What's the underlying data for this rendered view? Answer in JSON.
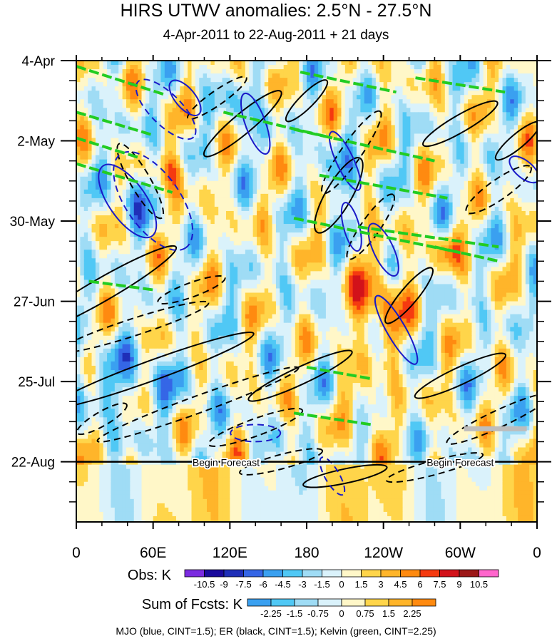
{
  "chart_data": {
    "type": "heatmap",
    "title": "HIRS UTWV anomalies: 2.5°N - 27.5°N",
    "subtitle": "4-Apr-2011 to 22-Aug-2011 + 21 days",
    "x_ticks": [
      "0",
      "60E",
      "120E",
      "180",
      "120W",
      "60W",
      "0"
    ],
    "x_range": [
      0,
      360
    ],
    "y_ticks": [
      "4-Apr",
      "2-May",
      "30-May",
      "27-Jun",
      "25-Jul",
      "22-Aug"
    ],
    "y_range_days": [
      0,
      161
    ],
    "forecast_start_day": 140,
    "forecast_label": "Begin Forecast",
    "obs_colorbar": {
      "label": "Obs: K",
      "levels": [
        "-10.5",
        "-9",
        "-7.5",
        "-6",
        "-4.5",
        "-3",
        "-1.5",
        "0",
        "1.5",
        "3",
        "4.5",
        "6",
        "7.5",
        "9",
        "10.5"
      ],
      "colors": [
        "#7b2be0",
        "#1a0a9c",
        "#1f2fb8",
        "#3566e6",
        "#3aa0f0",
        "#50c8f5",
        "#9fdcf5",
        "#daf2fb",
        "#fff7c8",
        "#ffd54a",
        "#ffb52a",
        "#ff8a10",
        "#f53a10",
        "#d2121a",
        "#9c1818",
        "#ff66cc"
      ]
    },
    "fcst_colorbar": {
      "label": "Sum of Fcsts: K",
      "levels": [
        "-2.25",
        "-1.5",
        "-0.75",
        "0",
        "0.75",
        "1.5",
        "2.25"
      ],
      "colors": [
        "#3aa0f0",
        "#50c8f5",
        "#9fdcf5",
        "#daf2fb",
        "#fff7c8",
        "#ffd54a",
        "#ffb52a",
        "#ff8a10"
      ]
    },
    "contour_legend": "MJO (blue, CINT=1.5); ER (black, CINT=1.5); Kelvin (green, CINT=2.25)",
    "series": [
      {
        "name": "MJO",
        "color": "#1a1ac8",
        "cint": 1.5
      },
      {
        "name": "ER",
        "color": "#000000",
        "cint": 1.5
      },
      {
        "name": "Kelvin",
        "color": "#22cc22",
        "cint": 2.25
      }
    ]
  }
}
